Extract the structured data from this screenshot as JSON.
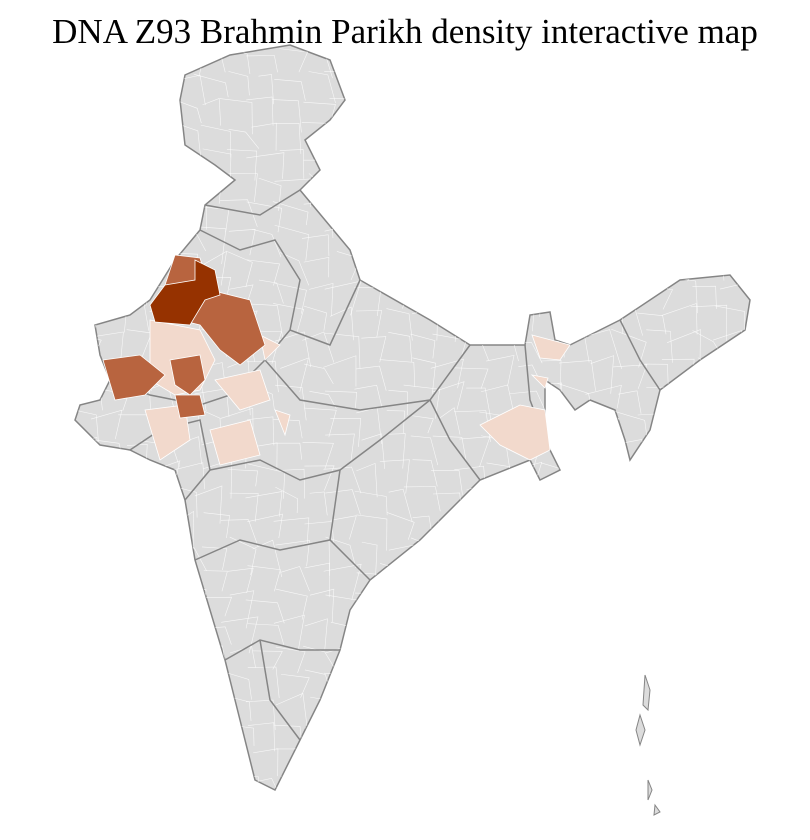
{
  "title": "DNA Z93 Brahmin Parikh density interactive map",
  "colors": {
    "background_region": "#dcdcdc",
    "state_border": "#858585",
    "district_border": "#ffffff",
    "density_high": "#963200",
    "density_medium": "#b8643f",
    "density_low": "#f2d9cc"
  },
  "map": {
    "region": "India",
    "interactive": true,
    "density_levels": [
      "high",
      "medium",
      "low",
      "none"
    ]
  }
}
